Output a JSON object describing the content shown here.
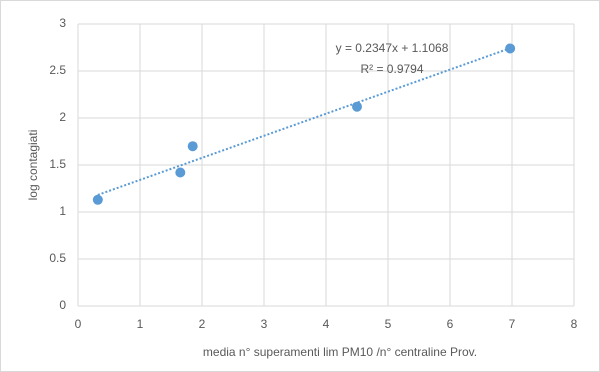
{
  "chart_data": {
    "type": "scatter",
    "x_label": "media n° superamenti lim PM10 /n° centraline Prov.",
    "y_label": "log contagiati",
    "series": [
      {
        "color": "#5b9bd5",
        "x": [
          0.32,
          1.65,
          1.85,
          4.5,
          6.97
        ],
        "values": [
          1.13,
          1.42,
          1.7,
          2.12,
          2.74
        ]
      }
    ],
    "trendline": {
      "label": "y = 0.2347x + 1.1068",
      "r2_label": "R² = 0.9794",
      "slope": 0.2347,
      "intercept": 1.1068,
      "color": "#5b9bd5"
    },
    "xlim": [
      0,
      8
    ],
    "xticks": [
      0,
      1,
      2,
      3,
      4,
      5,
      6,
      7,
      8
    ],
    "ylim": [
      0,
      3
    ],
    "yticks": [
      0,
      0.5,
      1,
      1.5,
      2,
      2.5,
      3
    ],
    "grid": true
  }
}
